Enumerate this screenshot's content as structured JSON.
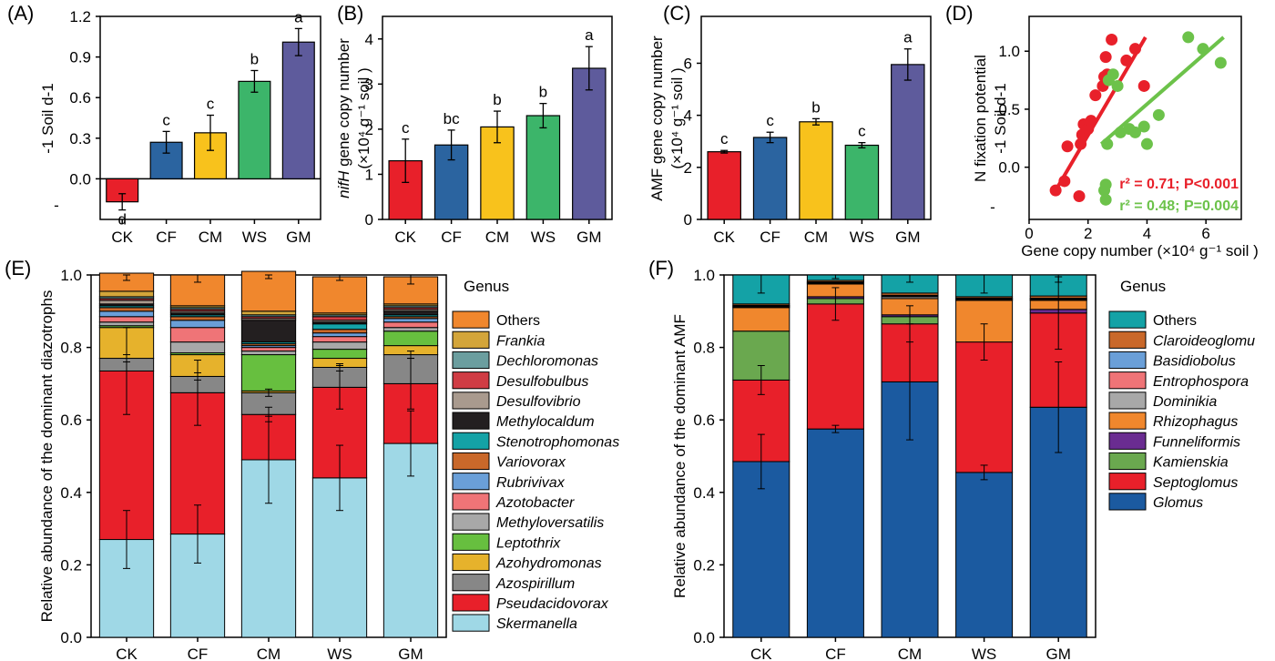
{
  "colors": {
    "CK": "#e8202a",
    "CF": "#2b64a0",
    "CM": "#f8c21c",
    "WS": "#3cb56a",
    "GM": "#5e5b9c",
    "scatter_red": "#e8202a",
    "scatter_green": "#6cc24a"
  },
  "chart_data": [
    {
      "panel": "(A)",
      "type": "bar",
      "categories": [
        "CK",
        "CF",
        "CM",
        "WS",
        "GM"
      ],
      "values": [
        -0.17,
        0.27,
        0.34,
        0.72,
        1.01
      ],
      "errors": [
        0.06,
        0.08,
        0.13,
        0.08,
        0.1
      ],
      "letters": [
        "d",
        "c",
        "c",
        "b",
        "a"
      ],
      "ylabel": "-1 Soil  d-1",
      "ylim": [
        -0.3,
        1.2
      ],
      "yticks": [
        "0.0",
        "0.3",
        "0.6",
        "0.9",
        "1.2"
      ],
      "ytick_values": [
        0,
        0.3,
        0.6,
        0.9,
        1.2
      ],
      "extra_tick": "-"
    },
    {
      "panel": "(B)",
      "type": "bar",
      "categories": [
        "CK",
        "CF",
        "CM",
        "WS",
        "GM"
      ],
      "values": [
        1.3,
        1.65,
        2.05,
        2.3,
        3.35
      ],
      "errors": [
        0.48,
        0.33,
        0.35,
        0.27,
        0.48
      ],
      "letters": [
        "c",
        "bc",
        "b",
        "b",
        "a"
      ],
      "ylabel_italic": "nifH",
      "ylabel_rest": " gene copy number",
      "ylabel_line2": "(×10⁴ g⁻¹ soil )",
      "ylim": [
        0,
        4.5
      ],
      "yticks": [
        "0",
        "1",
        "2",
        "3",
        "4"
      ],
      "ytick_values": [
        0,
        1,
        2,
        3,
        4
      ]
    },
    {
      "panel": "(C)",
      "type": "bar",
      "categories": [
        "CK",
        "CF",
        "CM",
        "WS",
        "GM"
      ],
      "values": [
        2.6,
        3.15,
        3.75,
        2.85,
        5.95
      ],
      "errors": [
        0.05,
        0.2,
        0.12,
        0.1,
        0.6
      ],
      "letters": [
        "c",
        "c",
        "b",
        "c",
        "a"
      ],
      "ylabel": "AMF gene copy number",
      "ylabel_line2": "(×10⁴ g⁻¹ soil )",
      "ylim": [
        0,
        7.8
      ],
      "yticks": [
        "0",
        "2",
        "4",
        "6"
      ],
      "ytick_values": [
        0,
        2,
        4,
        6
      ]
    },
    {
      "panel": "(D)",
      "type": "scatter",
      "xlabel": "Gene copy number (×10⁴ g⁻¹ soil )",
      "ylabel": "N fixation potential",
      "ylabel_line2": "-1 Soil  d-1",
      "xlim": [
        0,
        7.2
      ],
      "ylim": [
        -0.45,
        1.3
      ],
      "xticks": [
        "0",
        "2",
        "4",
        "6"
      ],
      "xtick_values": [
        0,
        2,
        4,
        6
      ],
      "yticks": [
        "0.0",
        "0.5",
        "1.0"
      ],
      "ytick_values": [
        0,
        0.5,
        1.0
      ],
      "extra_tick": "-",
      "series": [
        {
          "color": "red",
          "x": [
            0.9,
            1.2,
            1.3,
            1.75,
            1.8,
            1.85,
            2.0,
            2.25,
            2.5,
            2.55,
            2.65,
            2.6,
            2.8,
            3.3,
            3.6,
            3.9,
            1.7,
            2.1
          ],
          "y": [
            -0.2,
            -0.12,
            0.18,
            0.2,
            0.28,
            0.37,
            0.33,
            0.62,
            0.7,
            0.78,
            0.8,
            0.95,
            1.1,
            0.92,
            1.02,
            0.7,
            -0.25,
            0.4
          ],
          "fit": [
            [
              0.9,
              -0.2
            ],
            [
              3.95,
              1.12
            ]
          ],
          "stat": "r² = 0.71; P<0.001"
        },
        {
          "color": "green",
          "x": [
            2.55,
            2.6,
            2.65,
            2.7,
            2.85,
            3.0,
            3.1,
            3.4,
            3.6,
            3.9,
            4.0,
            4.4,
            5.4,
            5.9,
            6.5,
            2.6
          ],
          "y": [
            -0.2,
            -0.15,
            0.2,
            0.75,
            0.8,
            0.7,
            0.3,
            0.33,
            0.3,
            0.35,
            0.2,
            0.45,
            1.12,
            1.02,
            0.9,
            -0.28
          ],
          "fit": [
            [
              2.45,
              0.2
            ],
            [
              6.6,
              1.12
            ]
          ],
          "stat": "r² = 0.48; P=0.004"
        }
      ]
    },
    {
      "panel": "(E)",
      "type": "bar",
      "stacked": true,
      "categories": [
        "CK",
        "CF",
        "CM",
        "WS",
        "GM"
      ],
      "ylabel": "Relative abundance of the dominant diazotrophs",
      "ylim": [
        0,
        1.0
      ],
      "yticks": [
        "0.0",
        "0.2",
        "0.4",
        "0.6",
        "0.8",
        "1.0"
      ],
      "ytick_values": [
        0,
        0.2,
        0.4,
        0.6,
        0.8,
        1.0
      ],
      "legend_title": "Genus",
      "series": [
        {
          "name": "Skermanella",
          "color": "#9fd8e6",
          "values": [
            0.27,
            0.285,
            0.49,
            0.44,
            0.535
          ],
          "errors": [
            0.08,
            0.08,
            0.12,
            0.09,
            0.09
          ]
        },
        {
          "name": "Pseudacidovorax",
          "color": "#e8202a",
          "values": [
            0.465,
            0.39,
            0.125,
            0.25,
            0.165
          ],
          "errors": [
            0.12,
            0.09,
            0.02,
            0.06,
            0.07
          ]
        },
        {
          "name": "Azospirillum",
          "color": "#878787",
          "values": [
            0.035,
            0.045,
            0.06,
            0.055,
            0.08
          ],
          "errors": [
            0.01,
            0.01,
            0.01,
            0.01,
            0.01
          ]
        },
        {
          "name": "Azohydromonas",
          "color": "#e6b22c",
          "values": [
            0.085,
            0.06,
            0.005,
            0.025,
            0.025
          ],
          "errors": [
            0,
            0,
            0,
            0,
            0
          ]
        },
        {
          "name": "Leptothrix",
          "color": "#67bf3f",
          "values": [
            0.005,
            0.005,
            0.1,
            0.025,
            0.04
          ],
          "errors": [
            0,
            0,
            0,
            0,
            0
          ]
        },
        {
          "name": "Methyloversatilis",
          "color": "#a8a8a8",
          "values": [
            0.01,
            0.03,
            0.01,
            0.02,
            0.01
          ],
          "errors": [
            0,
            0,
            0,
            0,
            0
          ]
        },
        {
          "name": "Azotobacter",
          "color": "#ef7477",
          "values": [
            0.015,
            0.04,
            0.01,
            0.015,
            0.015
          ],
          "errors": [
            0,
            0,
            0,
            0,
            0
          ]
        },
        {
          "name": "Rubrivivax",
          "color": "#6a9fd8",
          "values": [
            0.015,
            0.02,
            0.005,
            0.01,
            0.01
          ],
          "errors": [
            0,
            0,
            0,
            0,
            0
          ]
        },
        {
          "name": "Variovorax",
          "color": "#c9682a",
          "values": [
            0.01,
            0.01,
            0.005,
            0.01,
            0.005
          ],
          "errors": [
            0,
            0,
            0,
            0,
            0
          ]
        },
        {
          "name": "Stenotrophomonas",
          "color": "#14a2a6",
          "values": [
            0.005,
            0.005,
            0.005,
            0.015,
            0.005
          ],
          "errors": [
            0,
            0,
            0,
            0,
            0
          ]
        },
        {
          "name": "Methylocaldum",
          "color": "#231f20",
          "values": [
            0.005,
            0.005,
            0.06,
            0.005,
            0.01
          ],
          "errors": [
            0,
            0,
            0,
            0,
            0
          ]
        },
        {
          "name": "Desulfovibrio",
          "color": "#a99a8e",
          "values": [
            0.01,
            0.005,
            0.005,
            0.005,
            0.005
          ],
          "errors": [
            0,
            0,
            0,
            0,
            0
          ]
        },
        {
          "name": "Desulfobulbus",
          "color": "#d03c44",
          "values": [
            0.005,
            0.005,
            0.005,
            0.01,
            0.005
          ],
          "errors": [
            0,
            0,
            0,
            0,
            0
          ]
        },
        {
          "name": "Dechloromonas",
          "color": "#6b9e9f",
          "values": [
            0.005,
            0.005,
            0.005,
            0.005,
            0.005
          ],
          "errors": [
            0,
            0,
            0,
            0,
            0
          ]
        },
        {
          "name": "Frankia",
          "color": "#d3a53a",
          "values": [
            0.015,
            0.005,
            0.01,
            0.005,
            0.005
          ],
          "errors": [
            0,
            0,
            0,
            0,
            0
          ]
        },
        {
          "name": "Others",
          "color": "#f0872d",
          "values": [
            0.05,
            0.085,
            0.11,
            0.1,
            0.075
          ],
          "errors": [
            0.02,
            0.02,
            0.02,
            0.01,
            0.02
          ]
        }
      ]
    },
    {
      "panel": "(F)",
      "type": "bar",
      "stacked": true,
      "categories": [
        "CK",
        "CF",
        "CM",
        "WS",
        "GM"
      ],
      "ylabel": "Relative abundance of the dominant AMF",
      "ylim": [
        0,
        1.0
      ],
      "yticks": [
        "0.0",
        "0.2",
        "0.4",
        "0.6",
        "0.8",
        "1.0"
      ],
      "ytick_values": [
        0,
        0.2,
        0.4,
        0.6,
        0.8,
        1.0
      ],
      "legend_title": "Genus",
      "series": [
        {
          "name": "Glomus",
          "color": "#1b5aa0",
          "values": [
            0.485,
            0.575,
            0.705,
            0.455,
            0.635
          ],
          "errors": [
            0.075,
            0.01,
            0.16,
            0.02,
            0.125
          ]
        },
        {
          "name": "Septoglomus",
          "color": "#e8202a",
          "values": [
            0.225,
            0.345,
            0.16,
            0.36,
            0.26
          ],
          "errors": [
            0.04,
            0.045,
            0.05,
            0.05,
            0.1
          ]
        },
        {
          "name": "Kamienskia",
          "color": "#6aa84f",
          "values": [
            0.135,
            0.015,
            0.02,
            0.0,
            0.0
          ],
          "errors": [
            0,
            0,
            0,
            0,
            0
          ]
        },
        {
          "name": "Funneliformis",
          "color": "#6a2c91",
          "values": [
            0.0,
            0.005,
            0.005,
            0.0,
            0.01
          ],
          "errors": [
            0,
            0,
            0,
            0,
            0
          ]
        },
        {
          "name": "Rhizophagus",
          "color": "#f0872d",
          "values": [
            0.065,
            0.035,
            0.045,
            0.115,
            0.025
          ],
          "errors": [
            0,
            0,
            0,
            0,
            0
          ]
        },
        {
          "name": "Dominikia",
          "color": "#a8a8a8",
          "values": [
            0.002,
            0.002,
            0.005,
            0.002,
            0.002
          ],
          "errors": [
            0,
            0,
            0,
            0,
            0
          ]
        },
        {
          "name": "Entrophospora",
          "color": "#ef7477",
          "values": [
            0.002,
            0.002,
            0.002,
            0.002,
            0.002
          ],
          "errors": [
            0,
            0,
            0,
            0,
            0
          ]
        },
        {
          "name": "Basidiobolus",
          "color": "#6a9fd8",
          "values": [
            0.002,
            0.002,
            0.002,
            0.002,
            0.002
          ],
          "errors": [
            0,
            0,
            0,
            0,
            0
          ]
        },
        {
          "name": "Claroideoglomus",
          "color": "#c9682a",
          "values": [
            0.004,
            0.004,
            0.006,
            0.004,
            0.006
          ],
          "errors": [
            0,
            0,
            0,
            0,
            0
          ]
        },
        {
          "name": "Others",
          "color": "#14a2a6",
          "values": [
            0.08,
            0.015,
            0.05,
            0.06,
            0.058
          ],
          "errors": [
            0.05,
            0.01,
            0.02,
            0.05,
            0.02
          ]
        }
      ]
    }
  ],
  "labels": {
    "E_legend_names": [
      "Others",
      "Frankia",
      "Dechloromonas",
      "Desulfobulbus",
      "Desulfovibrio",
      "Methylocaldum",
      "Stenotrophomonas",
      "Variovorax",
      "Rubrivivax",
      "Azotobacter",
      "Methyloversatilis",
      "Leptothrix",
      "Azohydromonas",
      "Azospirillum",
      "Pseudacidovorax",
      "Skermanella"
    ],
    "F_legend_names": [
      "Others",
      "Claroideoglomu",
      "Basidiobolus",
      "Entrophospora",
      "Dominikia",
      "Rhizophagus",
      "Funneliformis",
      "Kamienskia",
      "Septoglomus",
      "Glomus"
    ]
  }
}
